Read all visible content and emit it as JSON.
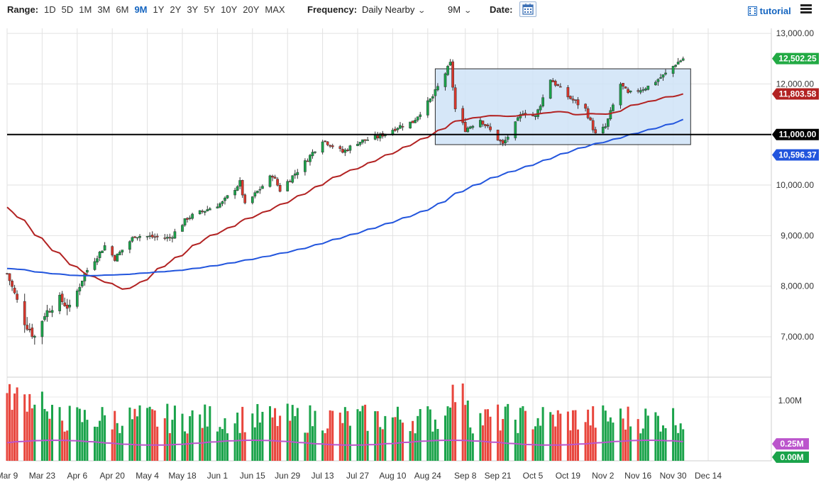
{
  "toolbar": {
    "range_label": "Range:",
    "ranges": [
      "1D",
      "5D",
      "1M",
      "3M",
      "6M",
      "9M",
      "1Y",
      "2Y",
      "3Y",
      "5Y",
      "10Y",
      "20Y",
      "MAX"
    ],
    "active_range": "9M",
    "frequency_label": "Frequency:",
    "frequency_value": "Daily Nearby",
    "period_value": "9M",
    "date_label": "Date:",
    "tutorial_label": "tutorial"
  },
  "chart_data": {
    "type": "candlestick",
    "title": "",
    "x_tick_labels": [
      "Mar 9",
      "Mar 23",
      "Apr 6",
      "Apr 20",
      "May 4",
      "May 18",
      "Jun 1",
      "Jun 15",
      "Jun 29",
      "Jul 13",
      "Jul 27",
      "Aug 10",
      "Aug 24",
      "Sep 8",
      "Sep 21",
      "Oct 5",
      "Oct 19",
      "Nov 2",
      "Nov 16",
      "Nov 30",
      "Dec 14"
    ],
    "y_ticks": [
      "13,000.00",
      "12,000.00",
      "11,000.00",
      "10,000.00",
      "9,000.00",
      "8,000.00",
      "7,000.00"
    ],
    "ylim": [
      6200,
      13100
    ],
    "grid": true,
    "price_keypoints": [
      {
        "date": "Mar 9",
        "close": 8250
      },
      {
        "date": "Mar 16",
        "close": 7300
      },
      {
        "date": "Mar 20",
        "close": 7000
      },
      {
        "date": "Mar 24",
        "close": 7450
      },
      {
        "date": "Mar 30",
        "close": 7750
      },
      {
        "date": "Apr 3",
        "close": 7550
      },
      {
        "date": "Apr 9",
        "close": 8250
      },
      {
        "date": "Apr 17",
        "close": 8800
      },
      {
        "date": "Apr 21",
        "close": 8550
      },
      {
        "date": "Apr 29",
        "close": 9000
      },
      {
        "date": "May 13",
        "close": 8950
      },
      {
        "date": "May 20",
        "close": 9350
      },
      {
        "date": "Jun 3",
        "close": 9650
      },
      {
        "date": "Jun 10",
        "close": 10050
      },
      {
        "date": "Jun 12",
        "close": 9600
      },
      {
        "date": "Jun 23",
        "close": 10200
      },
      {
        "date": "Jun 26",
        "close": 9900
      },
      {
        "date": "Jul 6",
        "close": 10450
      },
      {
        "date": "Jul 13",
        "close": 10900
      },
      {
        "date": "Jul 21",
        "close": 10650
      },
      {
        "date": "Jul 27",
        "close": 10850
      },
      {
        "date": "Aug 4",
        "close": 10950
      },
      {
        "date": "Aug 12",
        "close": 11150
      },
      {
        "date": "Aug 18",
        "close": 11250
      },
      {
        "date": "Aug 26",
        "close": 11750
      },
      {
        "date": "Sep 2",
        "close": 12400
      },
      {
        "date": "Sep 4",
        "close": 11500
      },
      {
        "date": "Sep 8",
        "close": 11100
      },
      {
        "date": "Sep 14",
        "close": 11300
      },
      {
        "date": "Sep 23",
        "close": 10800
      },
      {
        "date": "Oct 1",
        "close": 11450
      },
      {
        "date": "Oct 6",
        "close": 11350
      },
      {
        "date": "Oct 12",
        "close": 12100
      },
      {
        "date": "Oct 19",
        "close": 11750
      },
      {
        "date": "Oct 26",
        "close": 11500
      },
      {
        "date": "Oct 30",
        "close": 11000
      },
      {
        "date": "Nov 3",
        "close": 11150
      },
      {
        "date": "Nov 9",
        "close": 12000
      },
      {
        "date": "Nov 12",
        "close": 11800
      },
      {
        "date": "Nov 20",
        "close": 11950
      },
      {
        "date": "Nov 27",
        "close": 12200
      },
      {
        "date": "Dec 1",
        "close": 12400
      },
      {
        "date": "Dec 4",
        "close": 12502.25
      }
    ],
    "series": [
      {
        "name": "",
        "value_label": "12,502.25",
        "color": "#22aa44"
      },
      {
        "name": "",
        "value_label": "11,803.58",
        "color": "#b22222"
      },
      {
        "name": "",
        "value_label": "10,596.37",
        "color": "#2255dd"
      }
    ],
    "horizontal_line": {
      "value": 11000,
      "label": "11,000.00",
      "color": "#000000"
    },
    "range_box": {
      "from": "Aug 27",
      "to": "Dec 7",
      "low": 10800,
      "high": 12300,
      "color": "#9cc8ef"
    },
    "volume": {
      "y_tick": "1.00M",
      "avg_label": "0.25M",
      "zero_label": "0.00M",
      "avg_color": "#bb55cc",
      "up_color": "#1aa34a",
      "down_color": "#e8453c"
    }
  }
}
